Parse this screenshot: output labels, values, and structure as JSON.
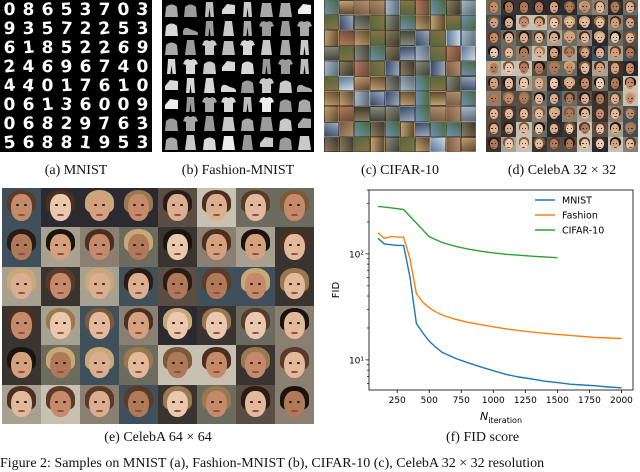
{
  "panels": {
    "mnist": {
      "caption": "(a) MNIST"
    },
    "fashion": {
      "caption": "(b) Fashion-MNIST"
    },
    "cifar": {
      "caption": "(c) CIFAR-10"
    },
    "celeba32": {
      "caption": "(d) CelebA 32 × 32"
    },
    "celeba64": {
      "caption": "(e) CelebA 64 × 64"
    },
    "fid": {
      "caption": "(f) FID score"
    }
  },
  "mnist_digits": "08653703 93572253 61852269 24696740 44017610 06136009 06829763 56881953",
  "figure_caption": "Figure 2: Samples on MNIST (a), Fashion-MNIST (b), CIFAR-10 (c), CelebA 32 × 32 resolution",
  "colors": {
    "mnist": "#1f77b4",
    "fashion": "#ff7f0e",
    "cifar": "#2ca02c"
  },
  "chart_data": {
    "type": "line",
    "title": "",
    "xlabel": "N_iteration",
    "ylabel": "FID",
    "xscale": "linear",
    "yscale": "log",
    "xlim": [
      30,
      2090
    ],
    "ylim": [
      5.2,
      400
    ],
    "xticks": [
      250,
      500,
      750,
      1000,
      1250,
      1500,
      1750,
      2000
    ],
    "yticks": [
      {
        "value": 10,
        "label": "10¹"
      },
      {
        "value": 100,
        "label": "10²"
      }
    ],
    "legend": "top-right",
    "series": [
      {
        "name": "MNIST",
        "color": "#1f77b4",
        "x": [
          100,
          150,
          200,
          250,
          300,
          350,
          400,
          450,
          500,
          550,
          600,
          700,
          800,
          900,
          1000,
          1100,
          1200,
          1300,
          1400,
          1500,
          1600,
          1700,
          1800,
          1900,
          2000
        ],
        "y": [
          140,
          124,
          122,
          120,
          120,
          60,
          22,
          18,
          15,
          13.2,
          11.8,
          10.4,
          9.4,
          8.6,
          7.9,
          7.3,
          6.9,
          6.6,
          6.3,
          6.1,
          5.9,
          5.8,
          5.7,
          5.55,
          5.45
        ]
      },
      {
        "name": "Fashion",
        "color": "#ff7f0e",
        "x": [
          100,
          150,
          200,
          250,
          300,
          350,
          400,
          450,
          500,
          550,
          600,
          700,
          800,
          900,
          1000,
          1100,
          1200,
          1300,
          1400,
          1500,
          1600,
          1700,
          1800,
          1900,
          2000
        ],
        "y": [
          158,
          140,
          146,
          144,
          144,
          90,
          42,
          35,
          31,
          28.5,
          26.5,
          24.2,
          22.6,
          21.5,
          20.5,
          19.6,
          18.9,
          18.3,
          17.8,
          17.4,
          17.0,
          16.6,
          16.3,
          16.1,
          15.9
        ]
      },
      {
        "name": "CIFAR-10",
        "color": "#2ca02c",
        "x": [
          100,
          200,
          300,
          400,
          500,
          600,
          700,
          800,
          900,
          1000,
          1100,
          1200,
          1300,
          1400,
          1500
        ],
        "y": [
          280,
          272,
          262,
          195,
          145,
          128,
          118,
          111,
          106,
          102,
          99,
          97,
          95,
          93.5,
          92
        ]
      }
    ]
  }
}
